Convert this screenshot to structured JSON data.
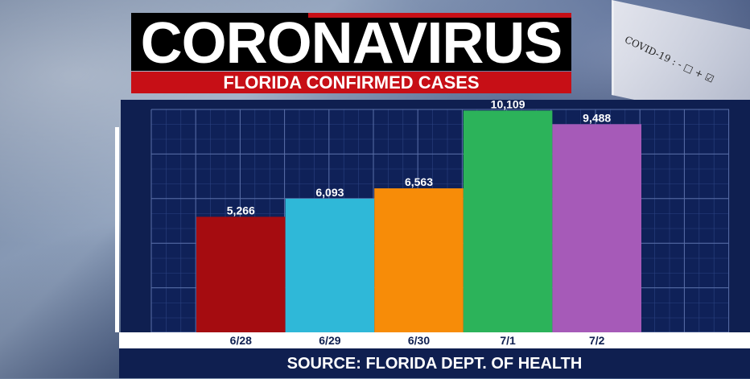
{
  "header": {
    "title": "CORONAVIRUS",
    "subtitle": "FLORIDA CONFIRMED CASES"
  },
  "background": {
    "tube_label": "COVID-19 : - □ + ☑"
  },
  "footer": {
    "source": "SOURCE: FLORIDA DEPT. OF HEALTH"
  },
  "colors": {
    "panel": "#0f1f50",
    "grid": "#5a6fa8"
  },
  "chart_data": {
    "type": "bar",
    "title": "FLORIDA CONFIRMED CASES",
    "categories": [
      "6/28",
      "6/29",
      "6/30",
      "7/1",
      "7/2"
    ],
    "values": [
      5266,
      6093,
      6563,
      10109,
      9488
    ],
    "data_labels": [
      "5,266",
      "6,093",
      "6,563",
      "10,109",
      "9,488"
    ],
    "bar_colors": [
      "#a50c10",
      "#2fb8d8",
      "#f78c08",
      "#2cb35a",
      "#a65ab8"
    ],
    "ylim": [
      0,
      10600
    ],
    "grid": true,
    "legend": "none"
  }
}
